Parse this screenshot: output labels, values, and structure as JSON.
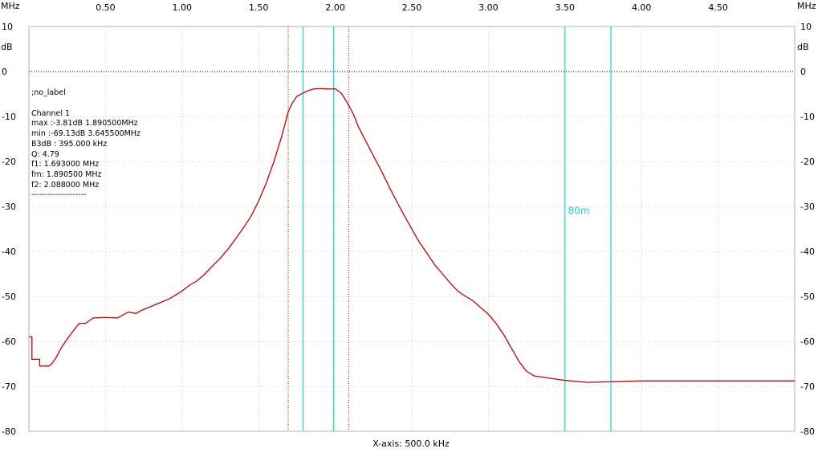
{
  "units": {
    "x_unit_left": "MHz",
    "x_unit_right": "MHz",
    "y_unit_left": "dB",
    "y_unit_right": "dB"
  },
  "info_box": {
    "label": ";no_label",
    "channel": "Channel 1",
    "max": "max :-3.81dB 1.890500MHz",
    "min": "min :-69.13dB 3.645500MHz",
    "b3db": "B3dB : 395.000 kHz",
    "q": "Q: 4.79",
    "f1": "f1: 1.693000 MHz",
    "fm": "fm: 1.890500 MHz",
    "f2": "f2: 2.088000 MHz",
    "separator": "--------------------"
  },
  "x_axis_caption": "X-axis: 500.0 kHz",
  "colors": {
    "trace": "#cc0000",
    "marker_cyan": "#1ad3d3",
    "marker_red_dotted": "#cc0000",
    "grid_dotted": "#c8c8c8",
    "zero_line": "#000000",
    "frame": "#b0b0b0"
  },
  "chart_data": {
    "type": "line",
    "xlabel": "X-axis: 500.0 kHz",
    "ylabel": "dB",
    "xlim": [
      0.0,
      5.0
    ],
    "ylim": [
      -80,
      10
    ],
    "x_ticks": [
      0.5,
      1.0,
      1.5,
      2.0,
      2.5,
      3.0,
      3.5,
      4.0,
      4.5
    ],
    "x_tick_labels": [
      "0.50",
      "1.00",
      "1.50",
      "2.00",
      "2.50",
      "3.00",
      "3.50",
      "4.00",
      "4.50"
    ],
    "y_ticks": [
      10,
      0,
      -10,
      -20,
      -30,
      -40,
      -50,
      -60,
      -70,
      -80
    ],
    "y_tick_labels": [
      "10",
      "0",
      "-10",
      "-20",
      "-30",
      "-40",
      "-50",
      "-60",
      "-70",
      "-80"
    ],
    "grid": true,
    "cyan_markers_mhz": [
      1.79,
      1.99,
      3.5,
      3.8
    ],
    "cyan_marker_annotation": {
      "text": "80m",
      "x": 3.52,
      "y": -31
    },
    "red_dotted_markers_mhz": [
      1.693,
      2.088
    ],
    "series": [
      {
        "color": "#cc0000",
        "points": [
          [
            0.0,
            -59.0
          ],
          [
            0.02,
            -59.0
          ],
          [
            0.02,
            -64.0
          ],
          [
            0.07,
            -64.0
          ],
          [
            0.07,
            -65.5
          ],
          [
            0.13,
            -65.5
          ],
          [
            0.15,
            -65.0
          ],
          [
            0.18,
            -63.5
          ],
          [
            0.21,
            -61.5
          ],
          [
            0.25,
            -59.5
          ],
          [
            0.3,
            -57.2
          ],
          [
            0.33,
            -56.0
          ],
          [
            0.37,
            -56.0
          ],
          [
            0.42,
            -54.8
          ],
          [
            0.5,
            -54.7
          ],
          [
            0.58,
            -54.8
          ],
          [
            0.62,
            -54.0
          ],
          [
            0.65,
            -53.5
          ],
          [
            0.7,
            -53.8
          ],
          [
            0.73,
            -53.2
          ],
          [
            0.78,
            -52.5
          ],
          [
            0.85,
            -51.5
          ],
          [
            0.92,
            -50.5
          ],
          [
            1.0,
            -48.8
          ],
          [
            1.05,
            -47.5
          ],
          [
            1.1,
            -46.5
          ],
          [
            1.15,
            -45.0
          ],
          [
            1.2,
            -43.2
          ],
          [
            1.25,
            -41.5
          ],
          [
            1.3,
            -39.5
          ],
          [
            1.35,
            -37.2
          ],
          [
            1.4,
            -34.8
          ],
          [
            1.45,
            -32.2
          ],
          [
            1.5,
            -28.8
          ],
          [
            1.55,
            -24.8
          ],
          [
            1.6,
            -20.0
          ],
          [
            1.65,
            -14.5
          ],
          [
            1.693,
            -9.0
          ],
          [
            1.72,
            -7.0
          ],
          [
            1.75,
            -5.5
          ],
          [
            1.79,
            -4.8
          ],
          [
            1.82,
            -4.3
          ],
          [
            1.86,
            -3.9
          ],
          [
            1.9,
            -3.81
          ],
          [
            1.95,
            -3.9
          ],
          [
            2.0,
            -3.85
          ],
          [
            2.04,
            -4.8
          ],
          [
            2.088,
            -7.5
          ],
          [
            2.12,
            -9.6
          ],
          [
            2.15,
            -12.2
          ],
          [
            2.2,
            -15.5
          ],
          [
            2.25,
            -18.8
          ],
          [
            2.3,
            -22.0
          ],
          [
            2.35,
            -25.5
          ],
          [
            2.4,
            -28.8
          ],
          [
            2.45,
            -32.0
          ],
          [
            2.5,
            -35.0
          ],
          [
            2.55,
            -38.0
          ],
          [
            2.6,
            -40.5
          ],
          [
            2.65,
            -43.0
          ],
          [
            2.7,
            -45.0
          ],
          [
            2.75,
            -47.0
          ],
          [
            2.8,
            -48.8
          ],
          [
            2.85,
            -50.0
          ],
          [
            2.9,
            -51.0
          ],
          [
            2.95,
            -52.5
          ],
          [
            3.0,
            -54.0
          ],
          [
            3.05,
            -56.0
          ],
          [
            3.1,
            -58.5
          ],
          [
            3.15,
            -61.5
          ],
          [
            3.2,
            -64.5
          ],
          [
            3.25,
            -66.7
          ],
          [
            3.3,
            -67.7
          ],
          [
            3.4,
            -68.2
          ],
          [
            3.5,
            -68.7
          ],
          [
            3.645,
            -69.13
          ],
          [
            3.8,
            -69.0
          ],
          [
            3.9,
            -68.9
          ],
          [
            4.0,
            -68.8
          ],
          [
            4.5,
            -68.8
          ],
          [
            5.0,
            -68.8
          ]
        ]
      }
    ]
  }
}
